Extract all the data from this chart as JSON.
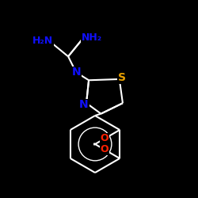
{
  "background_color": "#000000",
  "bond_color": "#ffffff",
  "atom_colors": {
    "N": "#1010ff",
    "S": "#e8a000",
    "O": "#ff2000",
    "C": "#ffffff"
  },
  "figsize": [
    2.5,
    2.5
  ],
  "dpi": 100
}
